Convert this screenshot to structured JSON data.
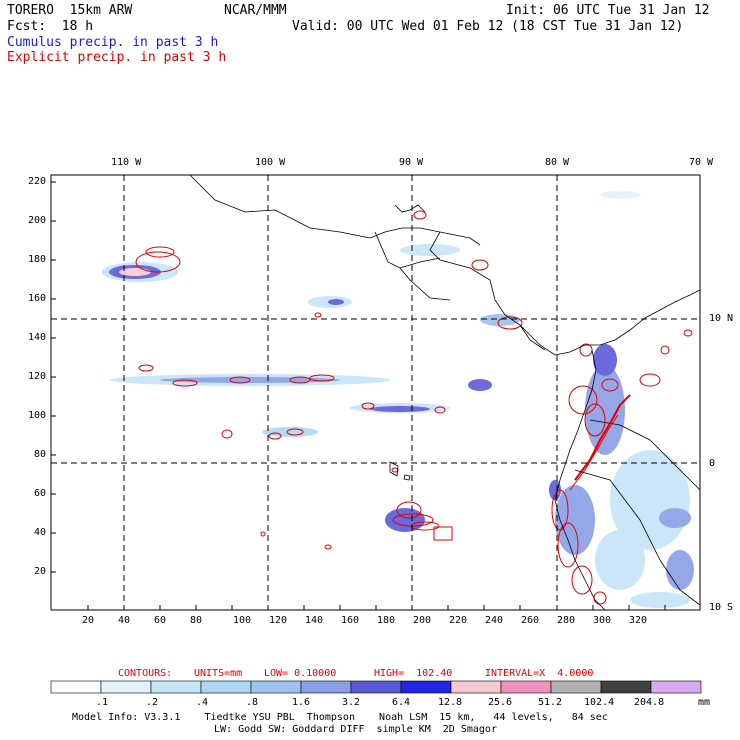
{
  "header": {
    "model": "TORERO  15km ARW",
    "org": "NCAR/MMM",
    "init": "Init: 06 UTC Tue 31 Jan 12",
    "fcst": "Fcst:  18 h",
    "valid": "Valid: 00 UTC Wed 01 Feb 12 (18 CST Tue 31 Jan 12)",
    "line1": "Cumulus precip. in past 3 h",
    "line2": "Explicit precip. in past 3 h"
  },
  "map": {
    "lon_labels": [
      "110 W",
      "100 W",
      "90 W",
      "80 W",
      "70 W"
    ],
    "lat_labels": [
      "10 N",
      "0",
      "10 S"
    ],
    "x_ticks": [
      "20",
      "40",
      "60",
      "80",
      "100",
      "120",
      "140",
      "160",
      "180",
      "200",
      "220",
      "240",
      "260",
      "280",
      "300",
      "320"
    ],
    "y_ticks": [
      "220",
      "200",
      "180",
      "160",
      "140",
      "120",
      "100",
      "80",
      "60",
      "40",
      "20"
    ]
  },
  "contours": {
    "label": "CONTOURS:",
    "units": "UNITS=mm",
    "low": "LOW= 0.10000",
    "high": "HIGH=  102.40",
    "interval": "INTERVAL=X  4.0000"
  },
  "colorbar": {
    "unit": "mm",
    "labels": [
      ".1",
      ".2",
      ".4",
      ".8",
      "1.6",
      "3.2",
      "6.4",
      "12.8",
      "25.6",
      "51.2",
      "102.4",
      "204.8"
    ],
    "colors": [
      "#ffffff",
      "#e4f2fc",
      "#c6e4f8",
      "#acd6f4",
      "#9cc2ee",
      "#8a9ee6",
      "#5a5ad6",
      "#2222e0",
      "#f8c8d0",
      "#f090c0",
      "#b0b0b0",
      "#404040",
      "#d8a8f0"
    ]
  },
  "footer": {
    "line1": "Model Info: V3.3.1    Tiedtke YSU PBL  Thompson    Noah LSM  15 km,   44 levels,   84 sec",
    "line2": "LW: Godd SW: Goddard DIFF  simple KM  2D Smagor"
  }
}
